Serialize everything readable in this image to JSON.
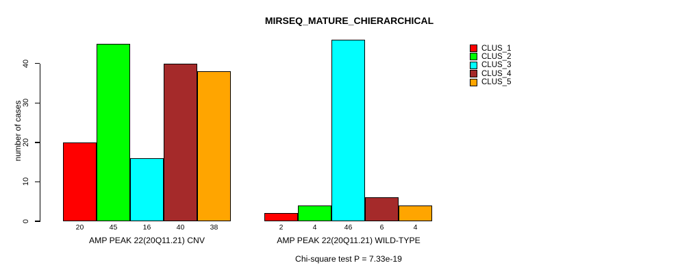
{
  "title": "MIRSEQ_MATURE_CHIERARCHICAL",
  "footnote": "Chi-square test P = 7.33e-19",
  "legend": {
    "items": [
      {
        "label": "CLUS_1",
        "color": "#FF0000"
      },
      {
        "label": "CLUS_2",
        "color": "#00FF00"
      },
      {
        "label": "CLUS_3",
        "color": "#00FFFF"
      },
      {
        "label": "CLUS_4",
        "color": "#A52A2A"
      },
      {
        "label": "CLUS_5",
        "color": "#FFA500"
      }
    ]
  },
  "chart_data": {
    "type": "bar",
    "title": "MIRSEQ_MATURE_CHIERARCHICAL",
    "ylabel": "number of cases",
    "xlabel": "",
    "ylim": [
      0,
      46
    ],
    "yticks": [
      0,
      10,
      20,
      30,
      40
    ],
    "grid": false,
    "legend_position": "top-right",
    "clusters": [
      "CLUS_1",
      "CLUS_2",
      "CLUS_3",
      "CLUS_4",
      "CLUS_5"
    ],
    "colors": [
      "#FF0000",
      "#00FF00",
      "#00FFFF",
      "#A52A2A",
      "#FFA500"
    ],
    "groups": [
      {
        "label": "AMP PEAK 22(20Q11.21) CNV",
        "values": [
          20,
          45,
          16,
          40,
          38
        ]
      },
      {
        "label": "AMP PEAK 22(20Q11.21) WILD-TYPE",
        "values": [
          2,
          4,
          46,
          6,
          4
        ]
      }
    ],
    "bar_value_labels_shown": true,
    "annotation": "Chi-square test P = 7.33e-19"
  }
}
